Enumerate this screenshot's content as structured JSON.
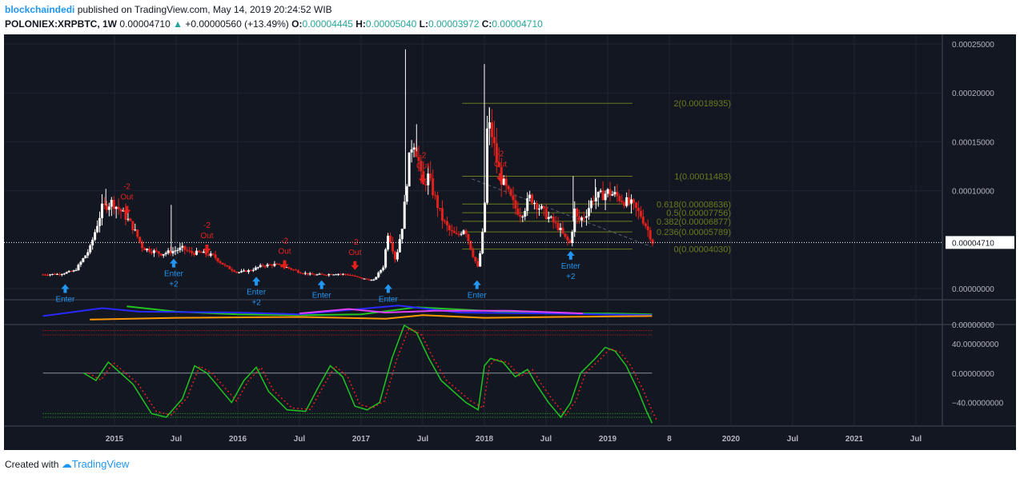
{
  "header": {
    "author": "blockchaindedi",
    "published": "published on TradingView.com, May 14, 2019 20:24:52 WIB",
    "symbol": "POLONIEX:XRPBTC, 1W",
    "last": "0.00004710",
    "change": "+0.00000560 (+13.49%)",
    "o_label": "O:",
    "o": "0.00004445",
    "h_label": "H:",
    "h": "0.00005040",
    "l_label": "L:",
    "l": "0.00003972",
    "c_label": "C:",
    "c": "0.00004710"
  },
  "footer": {
    "created": "Created with",
    "brand": "TradingView"
  },
  "colors": {
    "background": "#131722",
    "bull": "#ffffff",
    "bear": "#e3211c",
    "fib": "#6b7b1e",
    "signal": "#2196f3",
    "exit": "#e3211c",
    "osc": "#21c421",
    "osc_signal": "#e3211c"
  },
  "chart_data": [
    {
      "type": "candlestick",
      "symbol": "POLONIEX:XRPBTC",
      "interval": "1W",
      "y_tick_labels": [
        "0.00025000",
        "0.00020000",
        "0.00015000",
        "0.00010000",
        "0.00000000"
      ],
      "y_ticks": [
        0.00025,
        0.0002,
        0.00015,
        0.0001,
        0
      ],
      "x_tick_labels": [
        "2015",
        "Jul",
        "2016",
        "Jul",
        "2017",
        "Jul",
        "2018",
        "Jul",
        "2019",
        "8",
        "2020",
        "Jul",
        "2021",
        "Jul"
      ],
      "x_tick_dates": [
        2015.0,
        2015.5,
        2016.0,
        2016.5,
        2017.0,
        2017.5,
        2018.0,
        2018.5,
        2019.0,
        2019.5,
        2020.0,
        2020.5,
        2021.0,
        2021.5
      ],
      "ylim": [
        -1.2e-05,
        0.00026
      ],
      "last_price_label": "0.00004710",
      "last_price": 4.71e-05,
      "close_path": [
        [
          2014.42,
          1.43e-05
        ],
        [
          2014.55,
          1.48e-05
        ],
        [
          2014.68,
          1.82e-05
        ],
        [
          2014.8,
          4.05e-05
        ],
        [
          2014.9,
          8.25e-05
        ],
        [
          2014.98,
          8.85e-05
        ],
        [
          2015.08,
          7.55e-05
        ],
        [
          2015.15,
          6.25e-05
        ],
        [
          2015.23,
          4.15e-05
        ],
        [
          2015.38,
          3.55e-05
        ],
        [
          2015.48,
          3.85e-05
        ],
        [
          2015.55,
          4.12e-05
        ],
        [
          2015.62,
          3.65e-05
        ],
        [
          2015.7,
          3.65e-05
        ],
        [
          2015.8,
          3.35e-05
        ],
        [
          2015.9,
          2.25e-05
        ],
        [
          2016.0,
          1.65e-05
        ],
        [
          2016.1,
          1.85e-05
        ],
        [
          2016.2,
          2.35e-05
        ],
        [
          2016.3,
          2.45e-05
        ],
        [
          2016.4,
          2.15e-05
        ],
        [
          2016.5,
          1.68e-05
        ],
        [
          2016.6,
          1.42e-05
        ],
        [
          2016.7,
          1.42e-05
        ],
        [
          2016.8,
          1.52e-05
        ],
        [
          2016.9,
          1.42e-05
        ],
        [
          2017.0,
          1.05e-05
        ],
        [
          2017.1,
          8.2e-06
        ],
        [
          2017.18,
          2.25e-05
        ],
        [
          2017.22,
          5.85e-05
        ],
        [
          2017.28,
          2.85e-05
        ],
        [
          2017.34,
          6.85e-05
        ],
        [
          2017.38,
          0.0001225
        ],
        [
          2017.42,
          0.0001555
        ],
        [
          2017.46,
          0.0001355
        ],
        [
          2017.5,
          0.0001025
        ],
        [
          2017.54,
          0.0001155
        ],
        [
          2017.6,
          9.25e-05
        ],
        [
          2017.66,
          7.05e-05
        ],
        [
          2017.72,
          5.85e-05
        ],
        [
          2017.78,
          5.35e-05
        ],
        [
          2017.84,
          6.25e-05
        ],
        [
          2017.9,
          3.65e-05
        ],
        [
          2017.95,
          2.05e-05
        ],
        [
          2018.0,
          7.05e-05
        ],
        [
          2018.02,
          0.0001605
        ],
        [
          2018.05,
          0.0001655
        ],
        [
          2018.1,
          0.0001305
        ],
        [
          2018.14,
          0.0001105
        ],
        [
          2018.2,
          9.55e-05
        ],
        [
          2018.25,
          8.25e-05
        ],
        [
          2018.3,
          7.55e-05
        ],
        [
          2018.37,
          9.35e-05
        ],
        [
          2018.45,
          8.25e-05
        ],
        [
          2018.52,
          7.25e-05
        ],
        [
          2018.6,
          6.25e-05
        ],
        [
          2018.66,
          5.05e-05
        ],
        [
          2018.7,
          4.55e-05
        ],
        [
          2018.73,
          8.05e-05
        ],
        [
          2018.76,
          6.85e-05
        ],
        [
          2018.82,
          7.55e-05
        ],
        [
          2018.88,
          9.25e-05
        ],
        [
          2018.94,
          9.45e-05
        ],
        [
          2019.0,
          9.85e-05
        ],
        [
          2019.06,
          9.55e-05
        ],
        [
          2019.12,
          9.05e-05
        ],
        [
          2019.2,
          8.55e-05
        ],
        [
          2019.27,
          7.45e-05
        ],
        [
          2019.32,
          6.15e-05
        ],
        [
          2019.365,
          4.71e-05
        ]
      ],
      "wick_spikes": [
        [
          2014.93,
          0.000102
        ],
        [
          2015.46,
          8.55e-05
        ],
        [
          2017.36,
          0.0002445
        ],
        [
          2017.45,
          0.000168
        ],
        [
          2018.0,
          0.0002295
        ],
        [
          2018.04,
          0.0001855
        ],
        [
          2018.72,
          0.000115
        ],
        [
          2018.9,
          0.000112
        ]
      ],
      "fibonacci": [
        {
          "label": "2(0.00018935)",
          "level": 0.00018935
        },
        {
          "label": "1(0.00011483)",
          "level": 0.00011483
        },
        {
          "label": "0.618(0.00008636)",
          "level": 8.636e-05
        },
        {
          "label": "0.5(0.00007756)",
          "level": 7.756e-05
        },
        {
          "label": "0.382(0.00006877)",
          "level": 6.877e-05
        },
        {
          "label": "0.236(0.00005789)",
          "level": 5.789e-05
        },
        {
          "label": "0(0.00004030)",
          "level": 4.03e-05
        }
      ],
      "fib_range": [
        2017.82,
        2019.2
      ],
      "entry_signals": [
        {
          "date": 2014.6,
          "price": 4.5e-06,
          "label": "Enter"
        },
        {
          "date": 2015.48,
          "price": 3.05e-05,
          "label": "Enter +2"
        },
        {
          "date": 2016.15,
          "price": 1.2e-05,
          "label": "Enter +2"
        },
        {
          "date": 2016.68,
          "price": 8.5e-06,
          "label": "Enter"
        },
        {
          "date": 2017.22,
          "price": 4.5e-06,
          "label": "Enter"
        },
        {
          "date": 2017.94,
          "price": 8.5e-06,
          "label": "Enter"
        },
        {
          "date": 2018.7,
          "price": 3.85e-05,
          "label": "Enter +2"
        }
      ],
      "exit_signals": [
        {
          "date": 2015.1,
          "price": 8.2e-05,
          "label": "-2 Out"
        },
        {
          "date": 2015.75,
          "price": 4.25e-05,
          "label": "-2 Out"
        },
        {
          "date": 2016.38,
          "price": 2.65e-05,
          "label": "-2 Out"
        },
        {
          "date": 2016.95,
          "price": 2.55e-05,
          "label": "-2 Out"
        },
        {
          "date": 2017.5,
          "price": 0.000114,
          "label": "-2 Out"
        },
        {
          "date": 2018.13,
          "price": 0.0001155,
          "label": "-2 Out"
        }
      ]
    },
    {
      "type": "line",
      "name_panel": "directional-indicator",
      "y_tick_labels": [
        "0.00000000"
      ],
      "series": [
        {
          "color": "#21c421",
          "values": [
            [
              2015.1,
              0.85
            ],
            [
              2015.5,
              0.55
            ],
            [
              2016.0,
              0.4
            ],
            [
              2016.5,
              0.35
            ],
            [
              2017.0,
              0.4
            ],
            [
              2017.45,
              0.8
            ],
            [
              2018.0,
              0.6
            ],
            [
              2018.5,
              0.45
            ],
            [
              2019.0,
              0.45
            ],
            [
              2019.36,
              0.4
            ]
          ]
        },
        {
          "color": "#2929ff",
          "values": [
            [
              2014.42,
              0.3
            ],
            [
              2014.9,
              0.75
            ],
            [
              2015.2,
              0.55
            ],
            [
              2016.0,
              0.5
            ],
            [
              2016.5,
              0.4
            ],
            [
              2017.3,
              0.9
            ],
            [
              2017.8,
              0.5
            ],
            [
              2018.5,
              0.45
            ],
            [
              2019.36,
              0.35
            ]
          ]
        },
        {
          "color": "#e040fb",
          "values": [
            [
              2016.5,
              0.45
            ],
            [
              2016.9,
              0.7
            ],
            [
              2017.2,
              0.5
            ],
            [
              2017.6,
              0.6
            ],
            [
              2018.2,
              0.6
            ],
            [
              2018.8,
              0.45
            ]
          ]
        },
        {
          "color": "#ff9800",
          "values": [
            [
              2014.8,
              0.1
            ],
            [
              2015.5,
              0.2
            ],
            [
              2016.5,
              0.25
            ],
            [
              2017.2,
              0.15
            ],
            [
              2017.5,
              0.35
            ],
            [
              2018.0,
              0.2
            ],
            [
              2018.6,
              0.25
            ],
            [
              2019.36,
              0.3
            ]
          ]
        }
      ]
    },
    {
      "type": "line",
      "name_panel": "oscillator",
      "y_tick_labels": [
        "40.00000000",
        "0.00000000",
        "−40.00000000"
      ],
      "y_ticks": [
        40,
        0,
        -40
      ],
      "ylim": [
        -72,
        65
      ],
      "levels": [
        58,
        52,
        -55,
        -60
      ],
      "series": [
        {
          "color": "#21c421",
          "values": [
            [
              2014.75,
              0
            ],
            [
              2014.85,
              -10
            ],
            [
              2014.95,
              15
            ],
            [
              2015.05,
              0
            ],
            [
              2015.15,
              -15
            ],
            [
              2015.3,
              -55
            ],
            [
              2015.42,
              -60
            ],
            [
              2015.55,
              -35
            ],
            [
              2015.65,
              10
            ],
            [
              2015.75,
              0
            ],
            [
              2015.85,
              -20
            ],
            [
              2015.95,
              -40
            ],
            [
              2016.05,
              -10
            ],
            [
              2016.15,
              8
            ],
            [
              2016.25,
              -25
            ],
            [
              2016.4,
              -50
            ],
            [
              2016.55,
              -52
            ],
            [
              2016.65,
              -20
            ],
            [
              2016.75,
              10
            ],
            [
              2016.85,
              -5
            ],
            [
              2016.95,
              -45
            ],
            [
              2017.05,
              -50
            ],
            [
              2017.15,
              -40
            ],
            [
              2017.25,
              20
            ],
            [
              2017.35,
              65
            ],
            [
              2017.45,
              55
            ],
            [
              2017.55,
              20
            ],
            [
              2017.65,
              -10
            ],
            [
              2017.75,
              -25
            ],
            [
              2017.85,
              -40
            ],
            [
              2017.95,
              -50
            ],
            [
              2018.0,
              10
            ],
            [
              2018.05,
              20
            ],
            [
              2018.15,
              15
            ],
            [
              2018.25,
              -5
            ],
            [
              2018.35,
              5
            ],
            [
              2018.42,
              -15
            ],
            [
              2018.52,
              -40
            ],
            [
              2018.62,
              -60
            ],
            [
              2018.7,
              -40
            ],
            [
              2018.78,
              0
            ],
            [
              2018.9,
              20
            ],
            [
              2018.98,
              35
            ],
            [
              2019.06,
              30
            ],
            [
              2019.15,
              10
            ],
            [
              2019.25,
              -25
            ],
            [
              2019.31,
              -50
            ],
            [
              2019.36,
              -68
            ]
          ]
        }
      ]
    }
  ]
}
